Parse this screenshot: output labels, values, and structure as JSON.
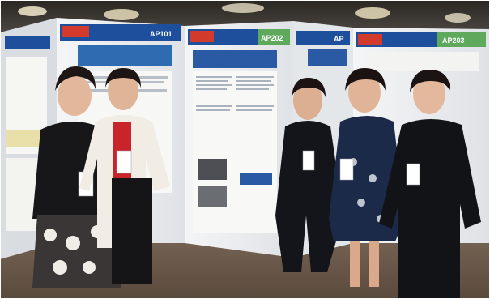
{
  "photo": {
    "boards": [
      {
        "code": "AP101",
        "header_color": "#1d4e9a"
      },
      {
        "code": "AP202",
        "header_color": "#1d4e9a"
      },
      {
        "code": "AP",
        "header_color": "#1d4e9a"
      },
      {
        "code": "AP203",
        "header_color": "#1d4e9a"
      }
    ],
    "colors": {
      "board": "#eef0f2",
      "board_shadow": "#c9ccd1",
      "accent_blue": "#1e4f9c",
      "accent_green": "#5ea95c",
      "floor": "#6b5a4c",
      "ceiling": "#2a2622"
    },
    "people_count": 5
  }
}
